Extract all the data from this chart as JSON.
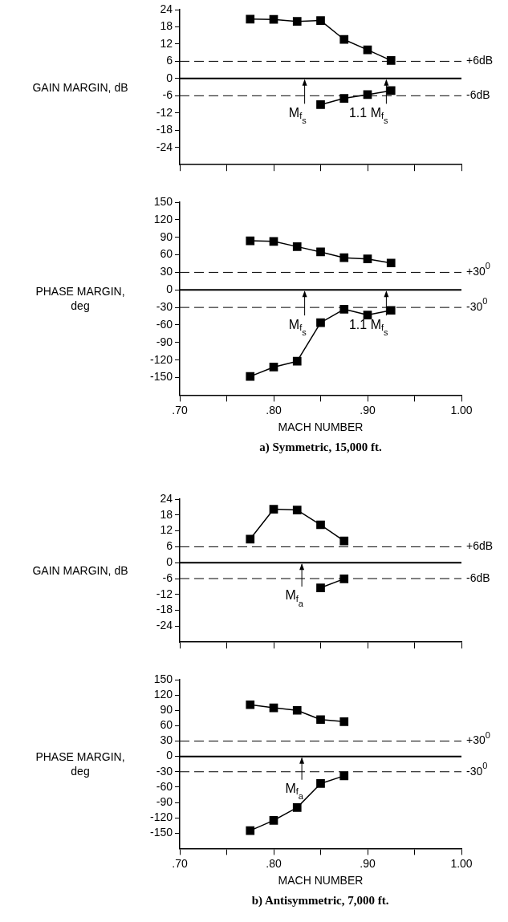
{
  "chart_data": [
    {
      "type": "line",
      "ylabel": "GAIN MARGIN, dB",
      "x": [
        0.775,
        0.8,
        0.825,
        0.85,
        0.875,
        0.9,
        0.925
      ],
      "series": [
        {
          "color": "#000000",
          "values": [
            20.7,
            20.6,
            19.9,
            20.2,
            13.6,
            10.0,
            6.3
          ]
        },
        {
          "color": "#000000",
          "values": [
            null,
            null,
            null,
            -9.1,
            -6.9,
            -5.6,
            -4.2
          ]
        }
      ],
      "xlim": [
        0.7,
        1.0
      ],
      "xticks": [
        {
          "value": 0.7,
          "label": null
        },
        {
          "value": 0.75,
          "label": null
        },
        {
          "value": 0.8,
          "label": null
        },
        {
          "value": 0.85,
          "label": null
        },
        {
          "value": 0.9,
          "label": null
        },
        {
          "value": 0.95,
          "label": null
        },
        {
          "value": 1.0,
          "label": null
        }
      ],
      "ylim": [
        -30,
        24
      ],
      "yticks": [
        -24,
        -18,
        -12,
        -6,
        0,
        6,
        12,
        18,
        24
      ],
      "tick_labels": "y",
      "grid": false,
      "legend": false,
      "marker": "square",
      "line_style": "solid",
      "ref_lines": [
        {
          "axis": "y",
          "value": 6,
          "label": "+6dB",
          "line_style": "dashed"
        },
        {
          "axis": "y",
          "value": 0,
          "line_style": "solid"
        },
        {
          "axis": "y",
          "value": -6,
          "label": "-6dB",
          "line_style": "dashed"
        }
      ],
      "annotations": [
        {
          "text": "M$_{f}$$_{s}$",
          "x": 0.833,
          "y": 0
        },
        {
          "text": "1.1 M$_{f}$$_{s}$",
          "x": 0.92,
          "y": 0
        }
      ]
    },
    {
      "type": "line",
      "ylabel": "PHASE MARGIN, deg",
      "xlabel": "MACH NUMBER",
      "x": [
        0.775,
        0.8,
        0.825,
        0.85,
        0.875,
        0.9,
        0.925
      ],
      "series": [
        {
          "color": "#000000",
          "values": [
            84,
            83,
            74,
            65,
            55,
            53,
            46
          ]
        },
        {
          "color": "#000000",
          "values": [
            -148,
            -132,
            -122,
            -56,
            -33,
            -43,
            -35
          ]
        }
      ],
      "xlim": [
        0.7,
        1.0
      ],
      "xticks": [
        {
          "value": 0.7,
          "label": ".70"
        },
        {
          "value": 0.75,
          "label": null
        },
        {
          "value": 0.8,
          "label": ".80"
        },
        {
          "value": 0.85,
          "label": null
        },
        {
          "value": 0.9,
          "label": ".90"
        },
        {
          "value": 0.95,
          "label": null
        },
        {
          "value": 1.0,
          "label": "1.00"
        }
      ],
      "ylim": [
        -180,
        150
      ],
      "yticks": [
        -150,
        -120,
        -90,
        -60,
        -30,
        0,
        30,
        60,
        90,
        120,
        150
      ],
      "grid": false,
      "legend": false,
      "marker": "square",
      "line_style": "solid",
      "ref_lines": [
        {
          "axis": "y",
          "value": 30,
          "label": "+30$^{0}$",
          "line_style": "dashed"
        },
        {
          "axis": "y",
          "value": 0,
          "line_style": "solid"
        },
        {
          "axis": "y",
          "value": -30,
          "label": "-30$^{0}$",
          "line_style": "dashed"
        }
      ],
      "annotations": [
        {
          "text": "M$_{f}$$_{s}$",
          "x": 0.833,
          "y": 0
        },
        {
          "text": "1.1 M$_{f}$$_{s}$",
          "x": 0.92,
          "y": 0
        },
        "a) Symmetric, 15,000 ft."
      ]
    },
    {
      "type": "line",
      "ylabel": "GAIN MARGIN, dB",
      "x": [
        0.775,
        0.8,
        0.825,
        0.85,
        0.875
      ],
      "series": [
        {
          "color": "#000000",
          "values": [
            8.9,
            20.2,
            19.9,
            14.3,
            8.2
          ]
        },
        {
          "color": "#000000",
          "values": [
            null,
            null,
            null,
            -9.5,
            -6.1
          ]
        }
      ],
      "xlim": [
        0.7,
        1.0
      ],
      "xticks": [
        {
          "value": 0.7,
          "label": null
        },
        {
          "value": 0.75,
          "label": null
        },
        {
          "value": 0.8,
          "label": null
        },
        {
          "value": 0.85,
          "label": null
        },
        {
          "value": 0.9,
          "label": null
        },
        {
          "value": 0.95,
          "label": null
        },
        {
          "value": 1.0,
          "label": null
        }
      ],
      "ylim": [
        -30,
        24
      ],
      "yticks": [
        -24,
        -18,
        -12,
        -6,
        0,
        6,
        12,
        18,
        24
      ],
      "tick_labels": "y",
      "grid": false,
      "legend": false,
      "marker": "square",
      "line_style": "solid",
      "ref_lines": [
        {
          "axis": "y",
          "value": 6,
          "label": "+6dB",
          "line_style": "dashed"
        },
        {
          "axis": "y",
          "value": 0,
          "line_style": "solid"
        },
        {
          "axis": "y",
          "value": -6,
          "label": "-6dB",
          "line_style": "dashed"
        }
      ],
      "annotations": [
        {
          "text": "M$_{f}$$_{a}$",
          "x": 0.83,
          "y": 0
        }
      ]
    },
    {
      "type": "line",
      "ylabel": "PHASE MARGIN, deg",
      "xlabel": "MACH NUMBER",
      "x": [
        0.775,
        0.8,
        0.825,
        0.85,
        0.875
      ],
      "series": [
        {
          "color": "#000000",
          "values": [
            101,
            95,
            90,
            72,
            68
          ]
        },
        {
          "color": "#000000",
          "values": [
            -145,
            -125,
            -100,
            -53,
            -38
          ]
        }
      ],
      "xlim": [
        0.7,
        1.0
      ],
      "xticks": [
        {
          "value": 0.7,
          "label": ".70"
        },
        {
          "value": 0.75,
          "label": null
        },
        {
          "value": 0.8,
          "label": ".80"
        },
        {
          "value": 0.85,
          "label": null
        },
        {
          "value": 0.9,
          "label": ".90"
        },
        {
          "value": 0.95,
          "label": null
        },
        {
          "value": 1.0,
          "label": "1.00"
        }
      ],
      "ylim": [
        -180,
        150
      ],
      "yticks": [
        -150,
        -120,
        -90,
        -60,
        -30,
        0,
        30,
        60,
        90,
        120,
        150
      ],
      "grid": false,
      "legend": false,
      "marker": "square",
      "line_style": "solid",
      "ref_lines": [
        {
          "axis": "y",
          "value": 30,
          "label": "+30$^{0}$",
          "line_style": "dashed"
        },
        {
          "axis": "y",
          "value": 0,
          "line_style": "solid"
        },
        {
          "axis": "y",
          "value": -30,
          "label": "-30$^{0}$",
          "line_style": "dashed"
        }
      ],
      "annotations": [
        {
          "text": "M$_{f}$$_{a}$",
          "x": 0.83,
          "y": 0
        },
        "b) Antisymmetric, 7,000 ft."
      ]
    }
  ]
}
